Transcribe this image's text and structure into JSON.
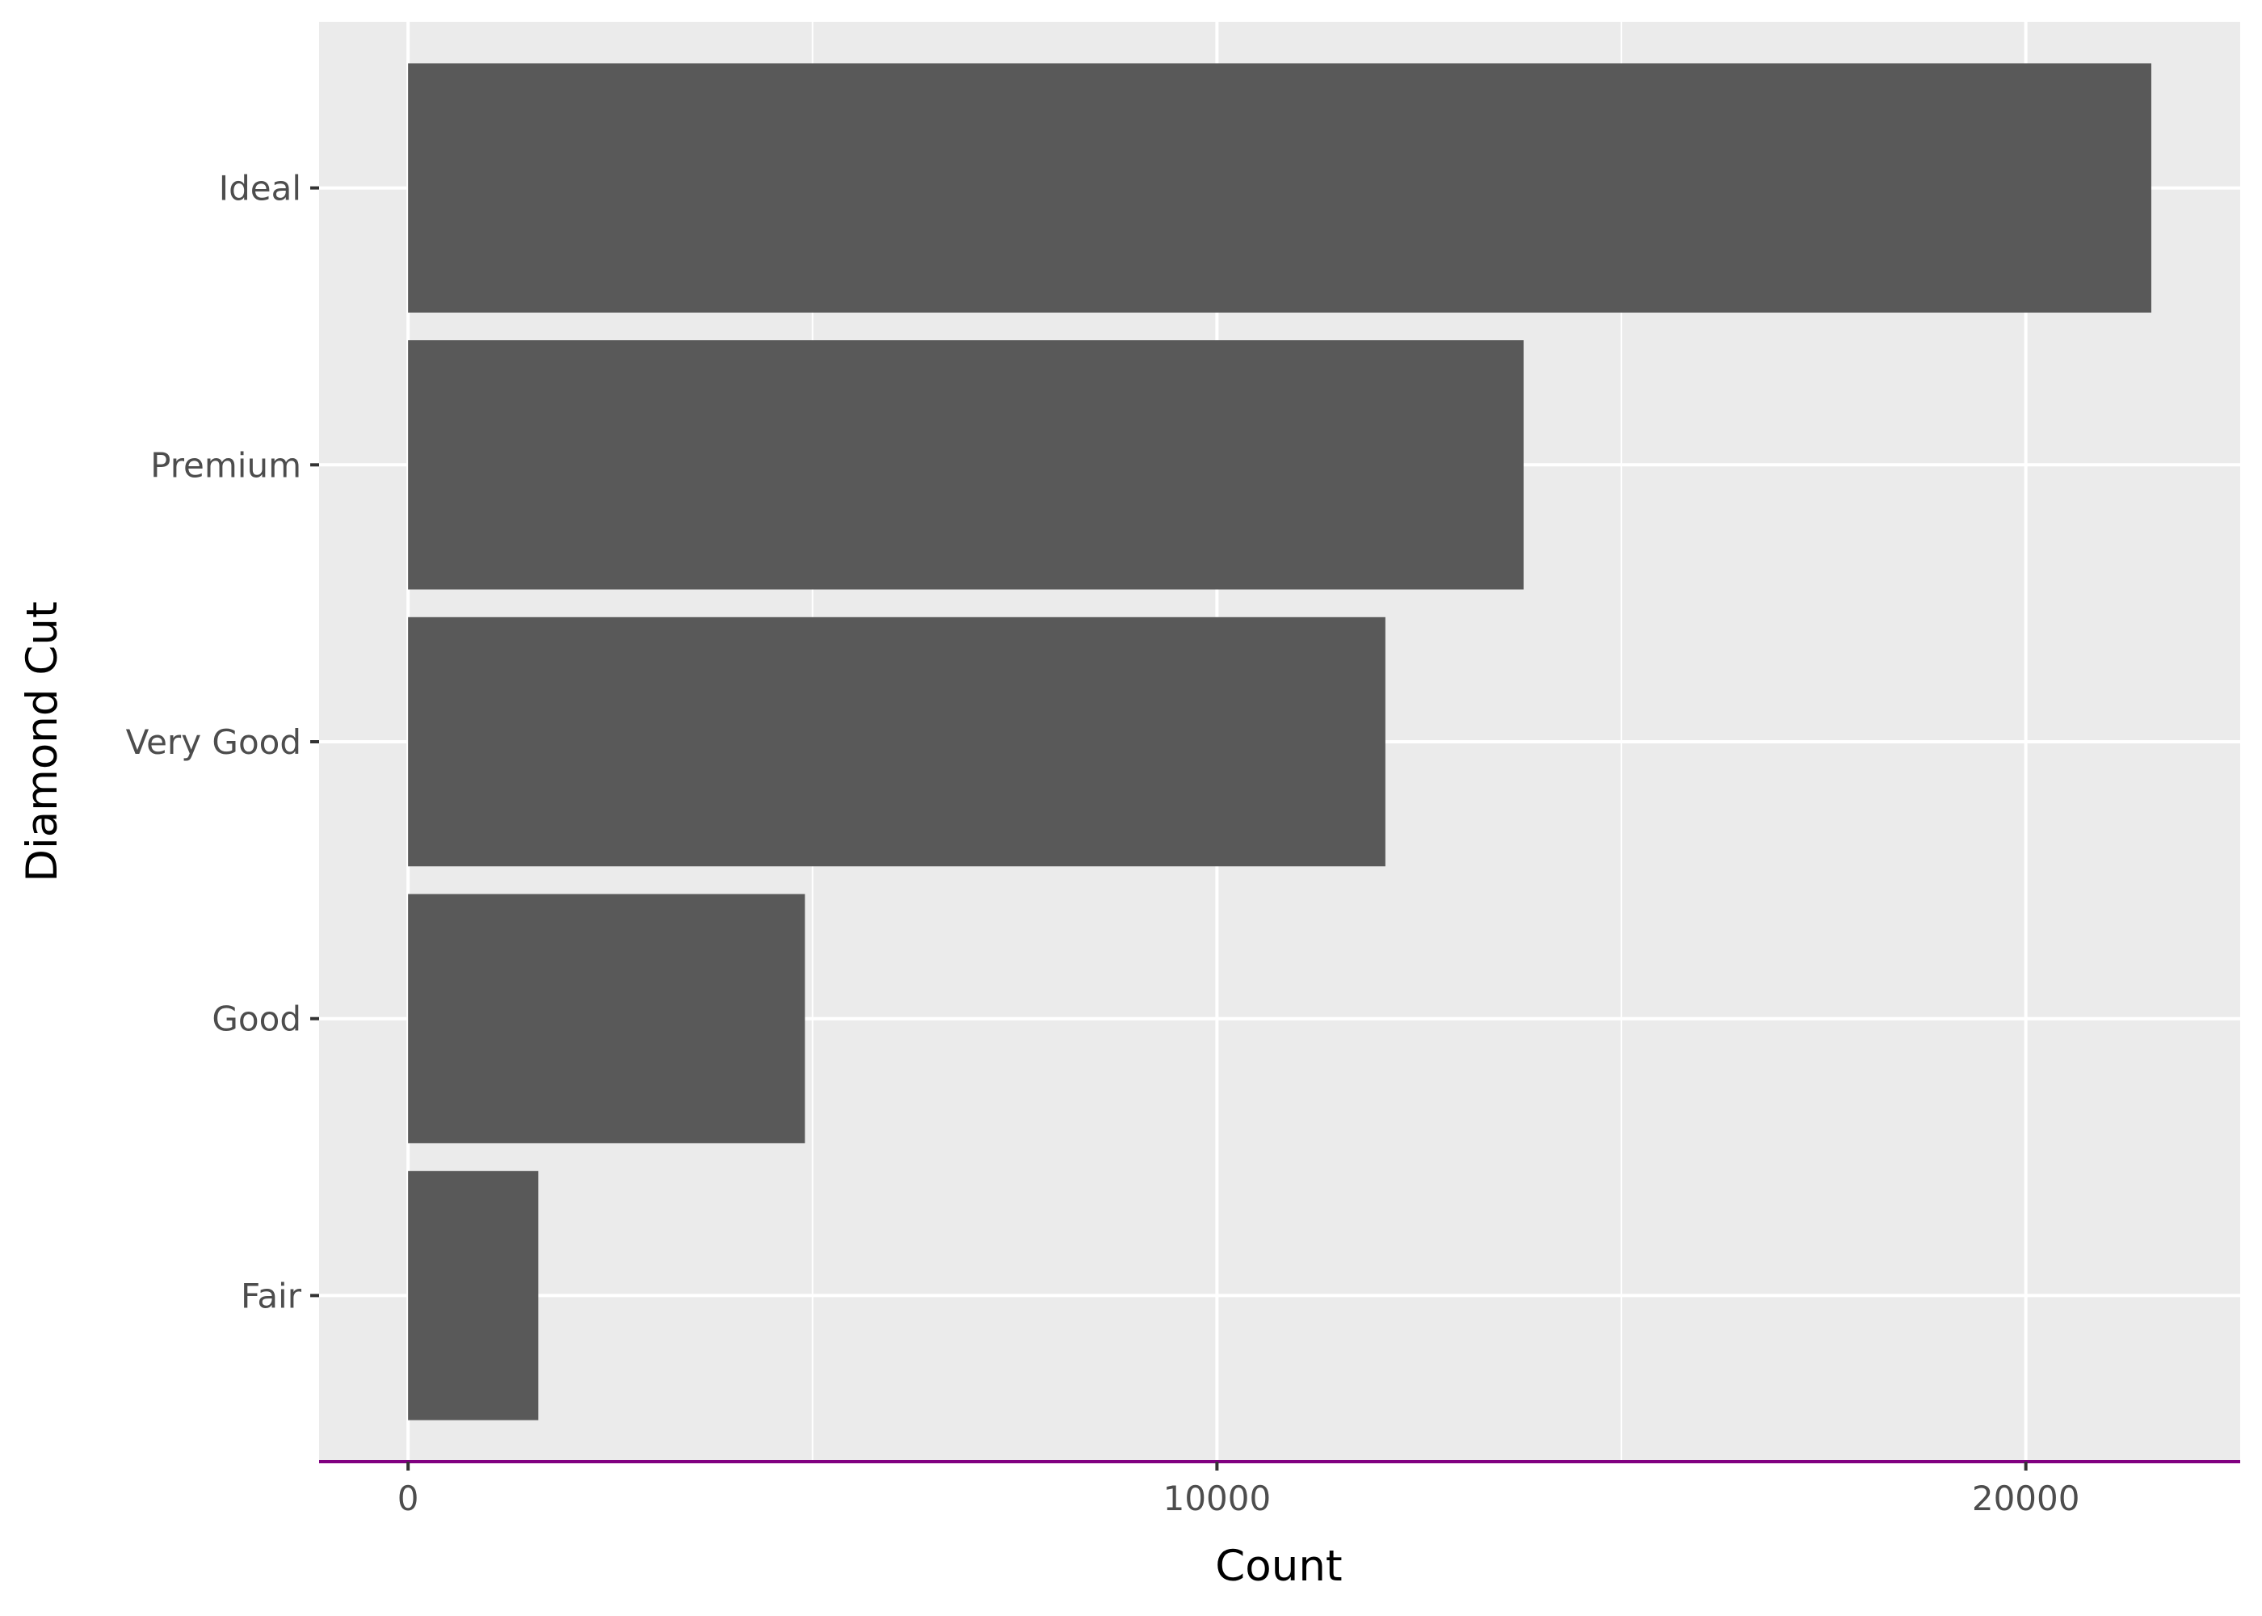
{
  "chart_data": {
    "type": "bar",
    "orientation": "horizontal",
    "categories": [
      "Ideal",
      "Premium",
      "Very Good",
      "Good",
      "Fair"
    ],
    "values": [
      21551,
      13791,
      12082,
      4906,
      1610
    ],
    "xlabel": "Count",
    "ylabel": "Diamond Cut",
    "xlim": [
      -1100,
      22650
    ],
    "x_ticks": [
      "0",
      "10000",
      "20000"
    ],
    "x_tick_values": [
      0,
      10000,
      20000
    ],
    "x_minor_values": [
      5000,
      15000
    ],
    "grid": true,
    "legend": "none",
    "colors": {
      "bar": "#595959",
      "panel": "#EBEBEB",
      "grid": "#FFFFFF",
      "x_axis_line": "#800080",
      "tick_text": "#4D4D4D",
      "title_text": "#000000"
    }
  }
}
